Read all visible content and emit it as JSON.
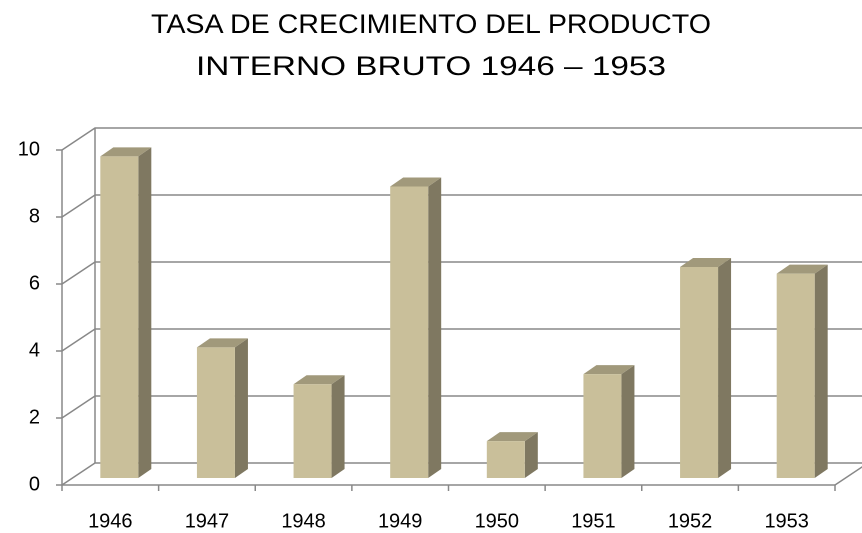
{
  "chart_data": {
    "type": "bar3d",
    "title": [
      "TASA DE CRECIMIENTO DEL PRODUCTO",
      "INTERNO BRUTO 1946 – 1953"
    ],
    "categories": [
      "1946",
      "1947",
      "1948",
      "1949",
      "1950",
      "1951",
      "1952",
      "1953"
    ],
    "values": [
      9.6,
      3.9,
      2.8,
      8.7,
      1.1,
      3.1,
      6.3,
      6.1
    ],
    "color": "#c9bf9a",
    "ylim": [
      0,
      10
    ],
    "yticks": [
      0,
      2,
      4,
      6,
      8,
      10
    ],
    "grid": true
  }
}
